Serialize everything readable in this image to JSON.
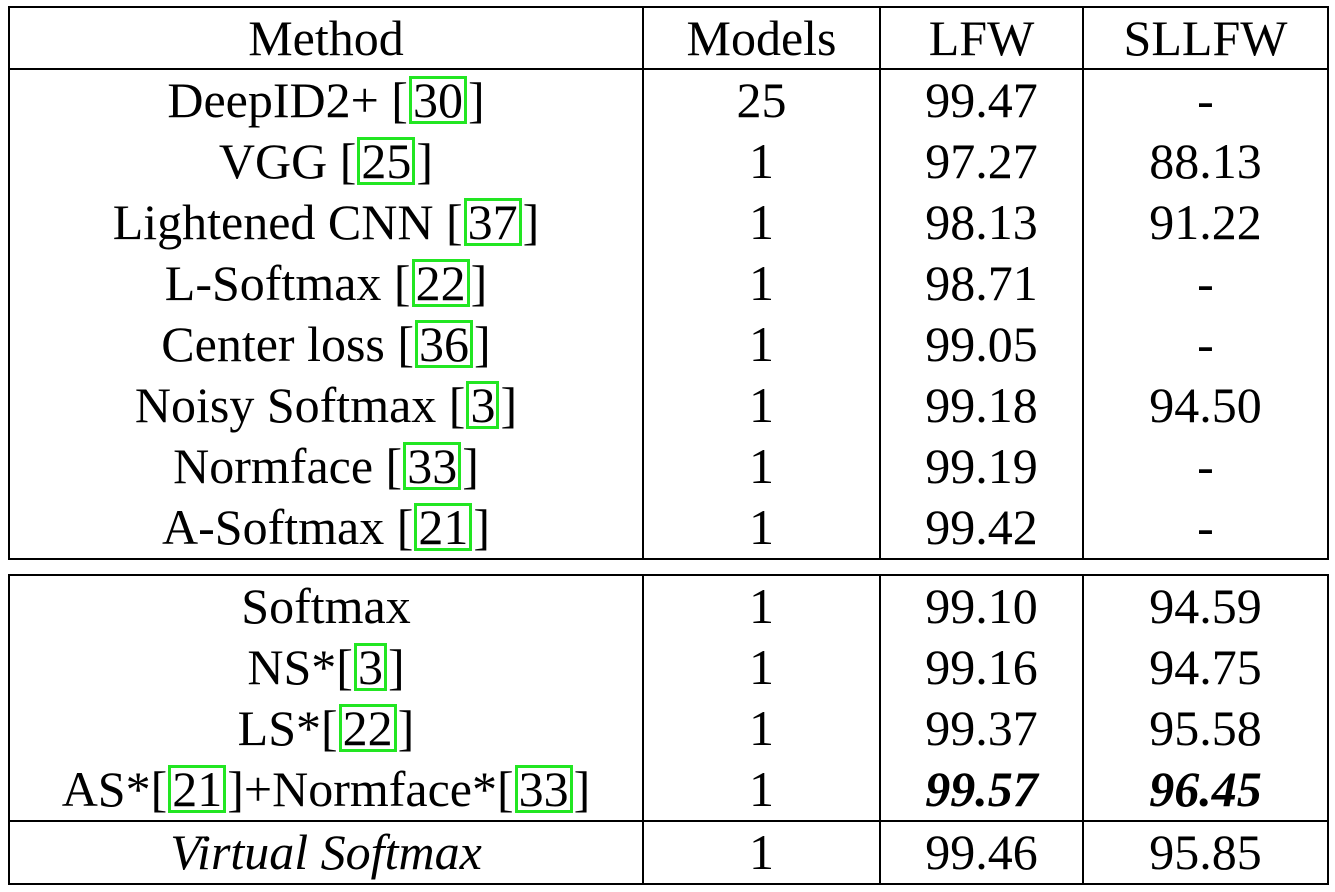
{
  "table": {
    "headers": [
      "Method",
      "Models",
      "LFW",
      "SLLFW"
    ],
    "group1": [
      {
        "name": "DeepID2+ [",
        "cite": "30",
        "suffix": "]",
        "models": "25",
        "lfw": "99.47",
        "sllfw": "-"
      },
      {
        "name": "VGG [",
        "cite": "25",
        "suffix": "]",
        "models": "1",
        "lfw": "97.27",
        "sllfw": "88.13"
      },
      {
        "name": "Lightened CNN [",
        "cite": "37",
        "suffix": "]",
        "models": "1",
        "lfw": "98.13",
        "sllfw": "91.22"
      },
      {
        "name": "L-Softmax [",
        "cite": "22",
        "suffix": "]",
        "models": "1",
        "lfw": "98.71",
        "sllfw": "-"
      },
      {
        "name": "Center loss [",
        "cite": "36",
        "suffix": "]",
        "models": "1",
        "lfw": "99.05",
        "sllfw": "-"
      },
      {
        "name": "Noisy Softmax [",
        "cite": "3",
        "suffix": "]",
        "models": "1",
        "lfw": "99.18",
        "sllfw": "94.50"
      },
      {
        "name": "Normface [",
        "cite": "33",
        "suffix": "]",
        "models": "1",
        "lfw": "99.19",
        "sllfw": "-"
      },
      {
        "name": "A-Softmax [",
        "cite": "21",
        "suffix": "]",
        "models": "1",
        "lfw": "99.42",
        "sllfw": "-"
      }
    ],
    "group2": {
      "softmax": {
        "name": "Softmax",
        "models": "1",
        "lfw": "99.10",
        "sllfw": "94.59"
      },
      "ns": {
        "name": "NS*[",
        "cite": "3",
        "suffix": "]",
        "models": "1",
        "lfw": "99.16",
        "sllfw": "94.75"
      },
      "ls": {
        "name": "LS*[",
        "cite": "22",
        "suffix": "]",
        "models": "1",
        "lfw": "99.37",
        "sllfw": "95.58"
      },
      "as": {
        "name_a": "AS*[",
        "cite_a": "21",
        "mid": "]+Normface*[",
        "cite_b": "33",
        "suffix": "]",
        "models": "1",
        "lfw": "99.57",
        "sllfw": "96.45"
      },
      "virtual": {
        "name": "Virtual Softmax",
        "models": "1",
        "lfw": "99.46",
        "sllfw": "95.85"
      }
    },
    "cite_border_color": "#22e622"
  }
}
